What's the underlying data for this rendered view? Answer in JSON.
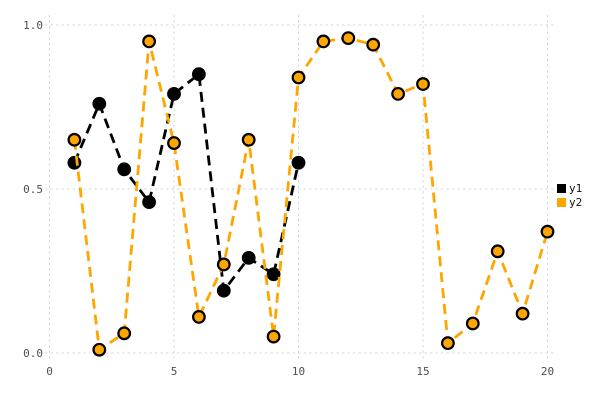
{
  "chart_data": {
    "type": "line",
    "title": "",
    "xlabel": "",
    "ylabel": "",
    "xlim": [
      0,
      20
    ],
    "ylim": [
      0,
      1
    ],
    "xticks": {
      "values": [
        0,
        5,
        10,
        15,
        20
      ],
      "labels": [
        "0",
        "5",
        "10",
        "15",
        "20"
      ]
    },
    "yticks": {
      "values": [
        0,
        0.5,
        1
      ],
      "labels": [
        "0.0",
        "0.5",
        "1.0"
      ]
    },
    "grid": true,
    "line_style": "dashed",
    "marker": "circle",
    "legend_position": "right",
    "series": [
      {
        "name": "y1",
        "color": "#000000",
        "marker_fill": "#000000",
        "marker_edge": "#000000",
        "x": [
          1,
          2,
          3,
          4,
          5,
          6,
          7,
          8,
          9,
          10
        ],
        "y": [
          0.58,
          0.76,
          0.56,
          0.46,
          0.79,
          0.85,
          0.19,
          0.29,
          0.24,
          0.58
        ]
      },
      {
        "name": "y2",
        "color": "#ffa500",
        "marker_fill": "#ffa500",
        "marker_edge": "#000000",
        "x": [
          1,
          2,
          3,
          4,
          5,
          6,
          7,
          8,
          9,
          10,
          11,
          12,
          13,
          14,
          15,
          16,
          17,
          18,
          19,
          20
        ],
        "y": [
          0.65,
          0.01,
          0.06,
          0.95,
          0.64,
          0.11,
          0.27,
          0.65,
          0.05,
          0.84,
          0.95,
          0.96,
          0.94,
          0.79,
          0.82,
          0.03,
          0.09,
          0.31,
          0.12,
          0.37
        ]
      }
    ],
    "style_colors": {
      "grid": "#d5d7e2",
      "tick_label": "#4d4d4d",
      "background": "#ffffff"
    },
    "legend_entries": [
      {
        "label": "y1",
        "color": "#000000"
      },
      {
        "label": "y2",
        "color": "#ffa500"
      }
    ]
  }
}
